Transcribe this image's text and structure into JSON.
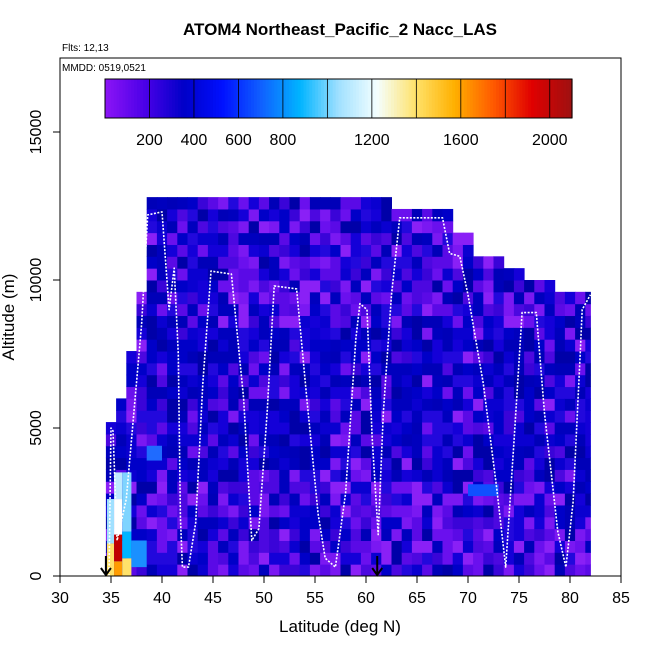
{
  "chart_data": {
    "type": "heatmap",
    "title": "ATOM4 Northeast_Pacific_2 Nacc_LAS",
    "annotations": {
      "flights": "Flts: 12,13",
      "dates": "MMDD: 0519,0521"
    },
    "xlabel": "Latitude (deg N)",
    "ylabel": "Altitude (m)",
    "xlim": [
      30,
      85
    ],
    "ylim": [
      0,
      17500
    ],
    "xticks": [
      "30",
      "35",
      "40",
      "45",
      "50",
      "55",
      "60",
      "65",
      "70",
      "75",
      "80",
      "85"
    ],
    "yticks": [
      "0",
      "5000",
      "10000",
      "15000"
    ],
    "colorbar": {
      "range": [
        0,
        2100
      ],
      "tick_labels": [
        "200",
        "400",
        "600",
        "800",
        "1200",
        "1600",
        "2000"
      ],
      "colors": [
        "#8a14f5",
        "#4a00e8",
        "#0000c8",
        "#0010ff",
        "#1060ff",
        "#00b4ff",
        "#a0e0ff",
        "#f4ffff",
        "#ffe26a",
        "#ffb000",
        "#ff5a00",
        "#e00000",
        "#a01010"
      ]
    },
    "flight_track": [
      [
        34.8,
        0
      ],
      [
        35.0,
        5000
      ],
      [
        35.2,
        4900
      ],
      [
        35.6,
        1200
      ],
      [
        36.5,
        2600
      ],
      [
        38.0,
        8500
      ],
      [
        38.6,
        12200
      ],
      [
        40.0,
        12300
      ],
      [
        40.7,
        9000
      ],
      [
        41.2,
        10400
      ],
      [
        41.6,
        7500
      ],
      [
        41.8,
        2000
      ],
      [
        42.0,
        300
      ],
      [
        42.6,
        300
      ],
      [
        43.3,
        1800
      ],
      [
        44.0,
        6500
      ],
      [
        44.8,
        10300
      ],
      [
        46.8,
        10200
      ],
      [
        48.0,
        6000
      ],
      [
        48.8,
        1200
      ],
      [
        49.5,
        1600
      ],
      [
        50.3,
        5500
      ],
      [
        51.0,
        9800
      ],
      [
        53.2,
        9700
      ],
      [
        54.2,
        6000
      ],
      [
        55.3,
        2100
      ],
      [
        56.0,
        600
      ],
      [
        57.0,
        300
      ],
      [
        58.0,
        2800
      ],
      [
        59.0,
        8000
      ],
      [
        59.4,
        9200
      ],
      [
        60.1,
        9000
      ],
      [
        60.6,
        4700
      ],
      [
        61.2,
        1400
      ],
      [
        61.7,
        5500
      ],
      [
        62.5,
        9500
      ],
      [
        63.3,
        12100
      ],
      [
        67.5,
        12100
      ],
      [
        68.2,
        10900
      ],
      [
        69.2,
        10800
      ],
      [
        70.0,
        9500
      ],
      [
        71.5,
        6500
      ],
      [
        72.8,
        3000
      ],
      [
        73.7,
        300
      ],
      [
        74.5,
        4500
      ],
      [
        75.3,
        8900
      ],
      [
        76.7,
        8900
      ],
      [
        77.5,
        5500
      ],
      [
        78.8,
        1500
      ],
      [
        79.6,
        300
      ],
      [
        80.3,
        2500
      ],
      [
        81.0,
        7500
      ],
      [
        81.2,
        9000
      ],
      [
        82.0,
        9500
      ]
    ],
    "markers": [
      {
        "x": 34.5,
        "symbol": "down-arrow"
      },
      {
        "x": 61.1,
        "symbol": "down-arrow"
      }
    ],
    "grid": false
  }
}
